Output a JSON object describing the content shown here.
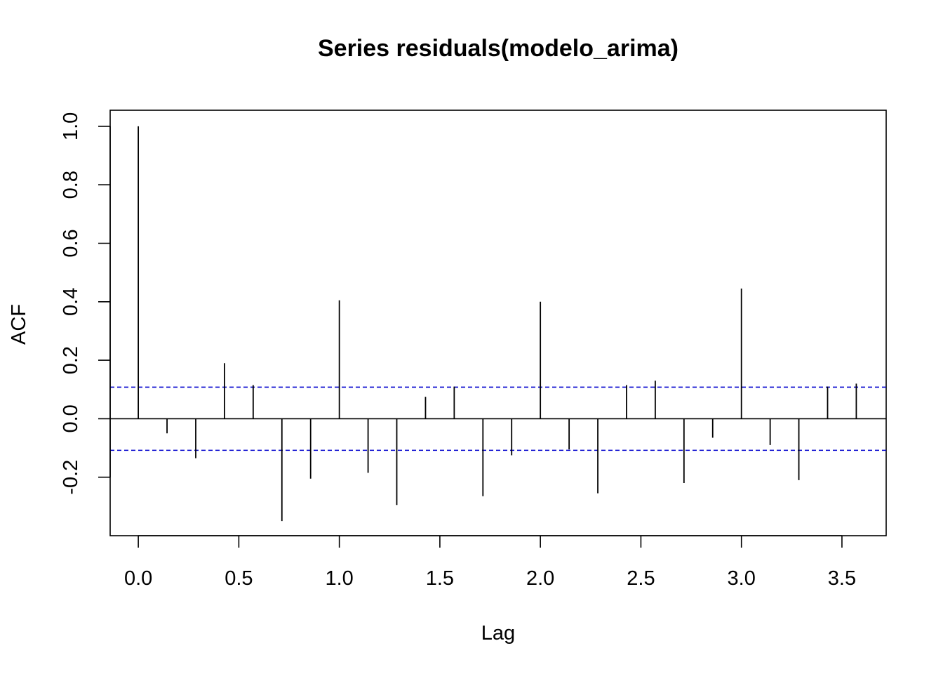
{
  "chart_data": {
    "type": "bar",
    "title": "Series  residuals(modelo_arima)",
    "xlabel": "Lag",
    "ylabel": "ACF",
    "x_ticks": [
      "0.0",
      "0.5",
      "1.0",
      "1.5",
      "2.0",
      "2.5",
      "3.0",
      "3.5"
    ],
    "y_ticks": [
      "-0.2",
      "0.0",
      "0.2",
      "0.4",
      "0.6",
      "0.8",
      "1.0"
    ],
    "xlim": [
      -0.14,
      3.72
    ],
    "ylim": [
      -0.4,
      1.055
    ],
    "lags": [
      0.0,
      0.1429,
      0.2857,
      0.4286,
      0.5714,
      0.7143,
      0.8571,
      1.0,
      1.1429,
      1.2857,
      1.4286,
      1.5714,
      1.7143,
      1.8571,
      2.0,
      2.1429,
      2.2857,
      2.4286,
      2.5714,
      2.7143,
      2.8571,
      3.0,
      3.1429,
      3.2857,
      3.4286,
      3.5714
    ],
    "acf": [
      1.0,
      -0.05,
      -0.135,
      0.19,
      0.115,
      -0.35,
      -0.205,
      0.405,
      -0.185,
      -0.295,
      0.075,
      0.11,
      -0.265,
      -0.125,
      0.4,
      -0.105,
      -0.255,
      0.115,
      0.13,
      -0.22,
      -0.065,
      0.445,
      -0.09,
      -0.21,
      0.11,
      0.12
    ],
    "confidence_bound": 0.108,
    "colors": {
      "bars": "#000000",
      "confidence_lines": "#0000CD",
      "zero_line": "#000000"
    }
  }
}
